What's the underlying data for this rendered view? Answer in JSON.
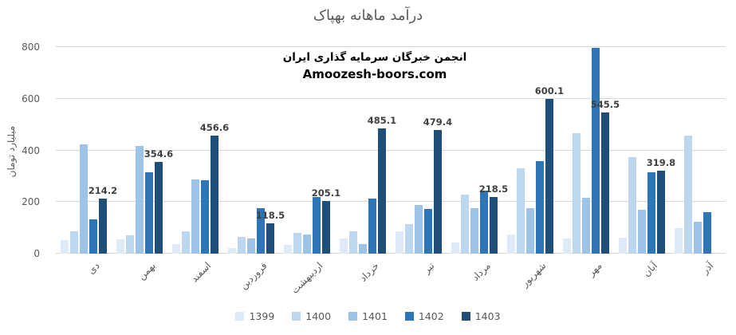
{
  "chart_data": {
    "type": "bar",
    "title": "درآمد ماهانه بهپاک",
    "ylabel": "میلیارد تومان",
    "annotation": {
      "line1": "انجمن خبرگان سرمایه گذاری ایران",
      "line2": "Amoozesh-boors.com"
    },
    "categories": [
      "دی",
      "بهمن",
      "اسفند",
      "فروردین",
      "اردیبهشت",
      "خرداد",
      "تیر",
      "مرداد",
      "شهریور",
      "مهر",
      "آبان",
      "آذر"
    ],
    "ylim": [
      0,
      800
    ],
    "y_ticks": [
      0,
      200,
      400,
      600,
      800
    ],
    "grid": true,
    "legend_position": "bottom",
    "series": [
      {
        "name": "1399",
        "color": "#DEEBF7",
        "values": [
          52,
          56,
          38,
          22,
          35,
          60,
          85,
          44,
          75,
          60,
          63,
          98
        ]
      },
      {
        "name": "1400",
        "color": "#BDD7EE",
        "values": [
          86,
          71,
          85,
          64,
          80,
          85,
          113,
          228,
          330,
          468,
          375,
          458
        ]
      },
      {
        "name": "1401",
        "color": "#9DC3E6",
        "values": [
          422,
          418,
          286,
          58,
          73,
          36,
          190,
          175,
          176,
          216,
          171,
          125
        ]
      },
      {
        "name": "1402",
        "color": "#2E75B6",
        "values": [
          132,
          314,
          283,
          175,
          218,
          212,
          172,
          243,
          358,
          798,
          314,
          161
        ]
      },
      {
        "name": "1403",
        "color": "#1F4E79",
        "values": [
          214.2,
          354.6,
          456.6,
          118.5,
          205.1,
          485.1,
          479.4,
          218.5,
          600.1,
          545.5,
          319.8,
          null
        ],
        "data_labels": [
          "214.2",
          "354.6",
          "456.6",
          "118.5",
          "205.1",
          "485.1",
          "479.4",
          "218.5",
          "600.1",
          "545.5",
          "319.8",
          ""
        ]
      }
    ]
  },
  "colors": {
    "title_text": "#595959",
    "axis_text": "#595959",
    "data_label_text": "#404040",
    "gridline": "#D9D9D9",
    "annotation_text": "#000000",
    "background": "#FFFFFF"
  }
}
